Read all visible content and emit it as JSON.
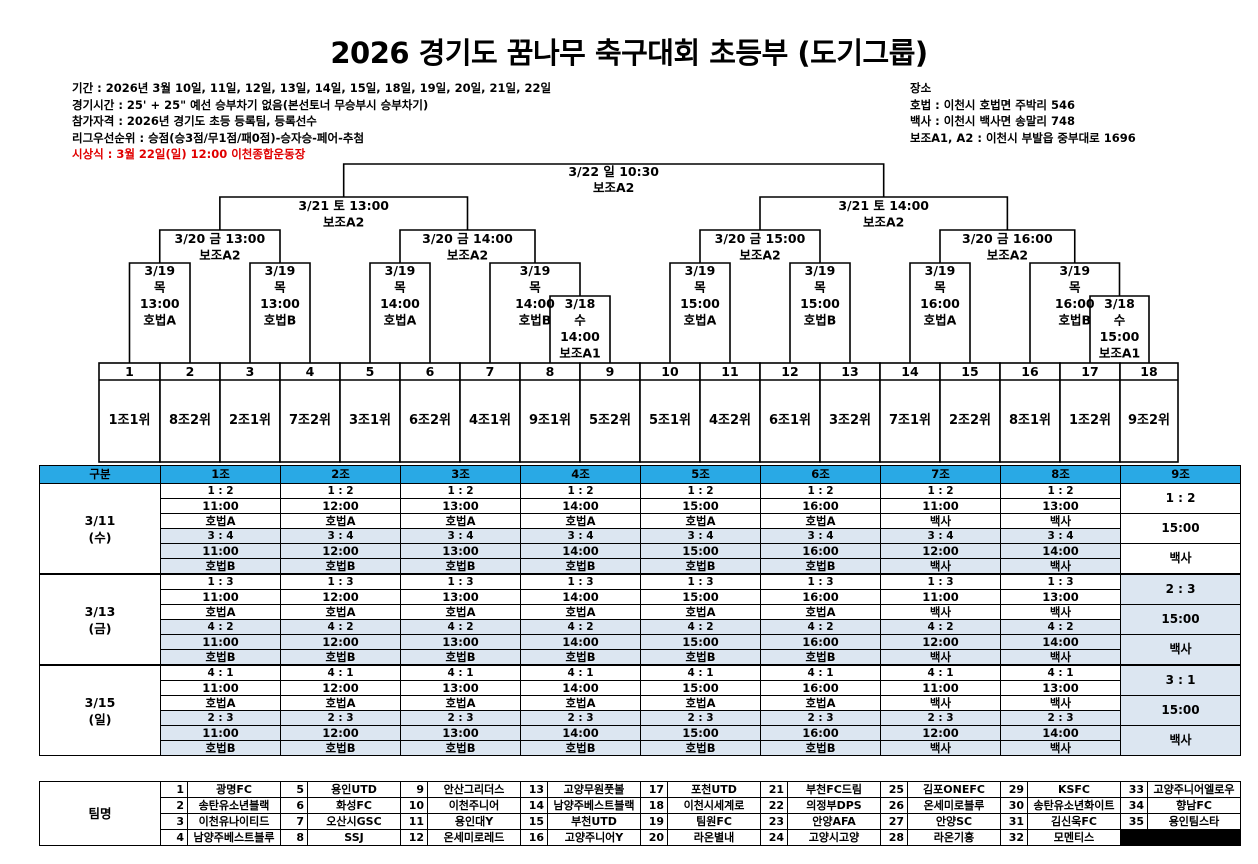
{
  "title": "2026 경기도 꿈나무 축구대회 초등부 (도기그룹)",
  "info_left": [
    {
      "text": "기간 : 2026년 3월 10일, 11일, 12일, 13일, 14일, 15일, 18일, 19일, 20일, 21일, 22일",
      "red": false
    },
    {
      "text": "경기시간 : 25' + 25\" 예선 승부차기 없음(본선토너 무승부시 승부차기)",
      "red": false
    },
    {
      "text": "참가자격 : 2026년 경기도 초등 등록팀, 등록선수",
      "red": false
    },
    {
      "text": "리그우선순위 : 승점(승3점/무1점/패0점)-승자승-페어-추첨",
      "red": false
    },
    {
      "text": "시상식 : 3월 22일(일) 12:00 이천종합운동장",
      "red": true
    }
  ],
  "info_right": [
    "장소",
    "호법 : 이천시 호법면 주박리 546",
    "백사 : 이천시 백사면 송말리 748",
    "보조A1, A2 : 이천시 부발읍 중부대로 1696"
  ],
  "bracket": {
    "final": [
      "3/22 일 10:30",
      "보조A2"
    ],
    "semis": [
      [
        "3/21 토 13:00",
        "보조A2"
      ],
      [
        "3/21 토 14:00",
        "보조A2"
      ]
    ],
    "quarters": [
      [
        "3/20 금 13:00",
        "보조A2"
      ],
      [
        "3/20 금 14:00",
        "보조A2"
      ],
      [
        "3/20 금 15:00",
        "보조A2"
      ],
      [
        "3/20 금 16:00",
        "보조A2"
      ]
    ],
    "r16": [
      [
        "3/19",
        "목",
        "13:00",
        "호법A"
      ],
      [
        "3/19",
        "목",
        "13:00",
        "호법B"
      ],
      [
        "3/19",
        "목",
        "14:00",
        "호법A"
      ],
      [
        "3/19",
        "목",
        "14:00",
        "호법B"
      ],
      [
        "3/19",
        "목",
        "15:00",
        "호법A"
      ],
      [
        "3/19",
        "목",
        "15:00",
        "호법B"
      ],
      [
        "3/19",
        "목",
        "16:00",
        "호법A"
      ],
      [
        "3/19",
        "목",
        "16:00",
        "호법B"
      ]
    ],
    "prelim": [
      [
        "3/18",
        "수",
        "14:00",
        "보조A1"
      ],
      [
        "3/18",
        "수",
        "15:00",
        "보조A1"
      ]
    ],
    "slots": [
      "1",
      "2",
      "3",
      "4",
      "5",
      "6",
      "7",
      "8",
      "9",
      "10",
      "11",
      "12",
      "13",
      "14",
      "15",
      "16",
      "17",
      "18"
    ],
    "seeds": [
      "1조1위",
      "8조2위",
      "2조1위",
      "7조2위",
      "3조1위",
      "6조2위",
      "4조1위",
      "9조1위",
      "5조2위",
      "5조1위",
      "4조2위",
      "6조1위",
      "3조2위",
      "7조1위",
      "2조2위",
      "8조1위",
      "1조2위",
      "9조2위"
    ]
  },
  "schedule": {
    "header_label": "구분",
    "groups": [
      "1조",
      "2조",
      "3조",
      "4조",
      "5조",
      "6조",
      "7조",
      "8조",
      "9조"
    ],
    "days": [
      {
        "date": "3/11",
        "weekday": "(수)",
        "rows": [
          [
            "1 : 2",
            "1 : 2",
            "1 : 2",
            "1 : 2",
            "1 : 2",
            "1 : 2",
            "1 : 2",
            "1 : 2"
          ],
          [
            "11:00",
            "12:00",
            "13:00",
            "14:00",
            "15:00",
            "16:00",
            "11:00",
            "13:00"
          ],
          [
            "호법A",
            "호법A",
            "호법A",
            "호법A",
            "호법A",
            "호법A",
            "백사",
            "백사"
          ],
          [
            "3 : 4",
            "3 : 4",
            "3 : 4",
            "3 : 4",
            "3 : 4",
            "3 : 4",
            "3 : 4",
            "3 : 4"
          ],
          [
            "11:00",
            "12:00",
            "13:00",
            "14:00",
            "15:00",
            "16:00",
            "12:00",
            "14:00"
          ],
          [
            "호법B",
            "호법B",
            "호법B",
            "호법B",
            "호법B",
            "호법B",
            "백사",
            "백사"
          ]
        ],
        "g9": [
          "1 : 2",
          "15:00",
          "백사"
        ]
      },
      {
        "date": "3/13",
        "weekday": "(금)",
        "rows": [
          [
            "1 : 3",
            "1 : 3",
            "1 : 3",
            "1 : 3",
            "1 : 3",
            "1 : 3",
            "1 : 3",
            "1 : 3"
          ],
          [
            "11:00",
            "12:00",
            "13:00",
            "14:00",
            "15:00",
            "16:00",
            "11:00",
            "13:00"
          ],
          [
            "호법A",
            "호법A",
            "호법A",
            "호법A",
            "호법A",
            "호법A",
            "백사",
            "백사"
          ],
          [
            "4 : 2",
            "4 : 2",
            "4 : 2",
            "4 : 2",
            "4 : 2",
            "4 : 2",
            "4 : 2",
            "4 : 2"
          ],
          [
            "11:00",
            "12:00",
            "13:00",
            "14:00",
            "15:00",
            "16:00",
            "12:00",
            "14:00"
          ],
          [
            "호법B",
            "호법B",
            "호법B",
            "호법B",
            "호법B",
            "호법B",
            "백사",
            "백사"
          ]
        ],
        "g9": [
          "2 : 3",
          "15:00",
          "백사"
        ]
      },
      {
        "date": "3/15",
        "weekday": "(일)",
        "rows": [
          [
            "4 : 1",
            "4 : 1",
            "4 : 1",
            "4 : 1",
            "4 : 1",
            "4 : 1",
            "4 : 1",
            "4 : 1"
          ],
          [
            "11:00",
            "12:00",
            "13:00",
            "14:00",
            "15:00",
            "16:00",
            "11:00",
            "13:00"
          ],
          [
            "호법A",
            "호법A",
            "호법A",
            "호법A",
            "호법A",
            "호법A",
            "백사",
            "백사"
          ],
          [
            "2 : 3",
            "2 : 3",
            "2 : 3",
            "2 : 3",
            "2 : 3",
            "2 : 3",
            "2 : 3",
            "2 : 3"
          ],
          [
            "11:00",
            "12:00",
            "13:00",
            "14:00",
            "15:00",
            "16:00",
            "12:00",
            "14:00"
          ],
          [
            "호법B",
            "호법B",
            "호법B",
            "호법B",
            "호법B",
            "호법B",
            "백사",
            "백사"
          ]
        ],
        "g9": [
          "3 : 1",
          "15:00",
          "백사"
        ]
      }
    ]
  },
  "teams": {
    "label": "팀명",
    "rows": [
      [
        [
          "1",
          "광명FC"
        ],
        [
          "5",
          "용인UTD"
        ],
        [
          "9",
          "안산그리더스"
        ],
        [
          "13",
          "고양무원풋볼"
        ],
        [
          "17",
          "포천UTD"
        ],
        [
          "21",
          "부천FC드림"
        ],
        [
          "25",
          "김포ONEFC"
        ],
        [
          "29",
          "KSFC"
        ],
        [
          "33",
          "고양주니어엘로우"
        ]
      ],
      [
        [
          "2",
          "송탄유소년블랙"
        ],
        [
          "6",
          "화성FC"
        ],
        [
          "10",
          "이천주니어"
        ],
        [
          "14",
          "남양주베스트블랙"
        ],
        [
          "18",
          "이천시세계로"
        ],
        [
          "22",
          "의정부DPS"
        ],
        [
          "26",
          "온세미로블루"
        ],
        [
          "30",
          "송탄유소년화이트"
        ],
        [
          "34",
          "향남FC"
        ]
      ],
      [
        [
          "3",
          "이천유나이티드"
        ],
        [
          "7",
          "오산시GSC"
        ],
        [
          "11",
          "용인대Y"
        ],
        [
          "15",
          "부천UTD"
        ],
        [
          "19",
          "팀원FC"
        ],
        [
          "23",
          "안양AFA"
        ],
        [
          "27",
          "안양SC"
        ],
        [
          "31",
          "김신욱FC"
        ],
        [
          "35",
          "용인팀스타"
        ]
      ],
      [
        [
          "4",
          "남양주베스트블루"
        ],
        [
          "8",
          "SSJ"
        ],
        [
          "12",
          "온세미로레드"
        ],
        [
          "16",
          "고양주니어Y"
        ],
        [
          "20",
          "라온별내"
        ],
        [
          "24",
          "고양시고양"
        ],
        [
          "28",
          "라온기흥"
        ],
        [
          "32",
          "모멘티스"
        ],
        [
          "",
          ""
        ]
      ]
    ]
  },
  "colors": {
    "header_blue": "#29a9e5",
    "row_shade": "#dce6f1",
    "notice_red": "#e00000"
  }
}
